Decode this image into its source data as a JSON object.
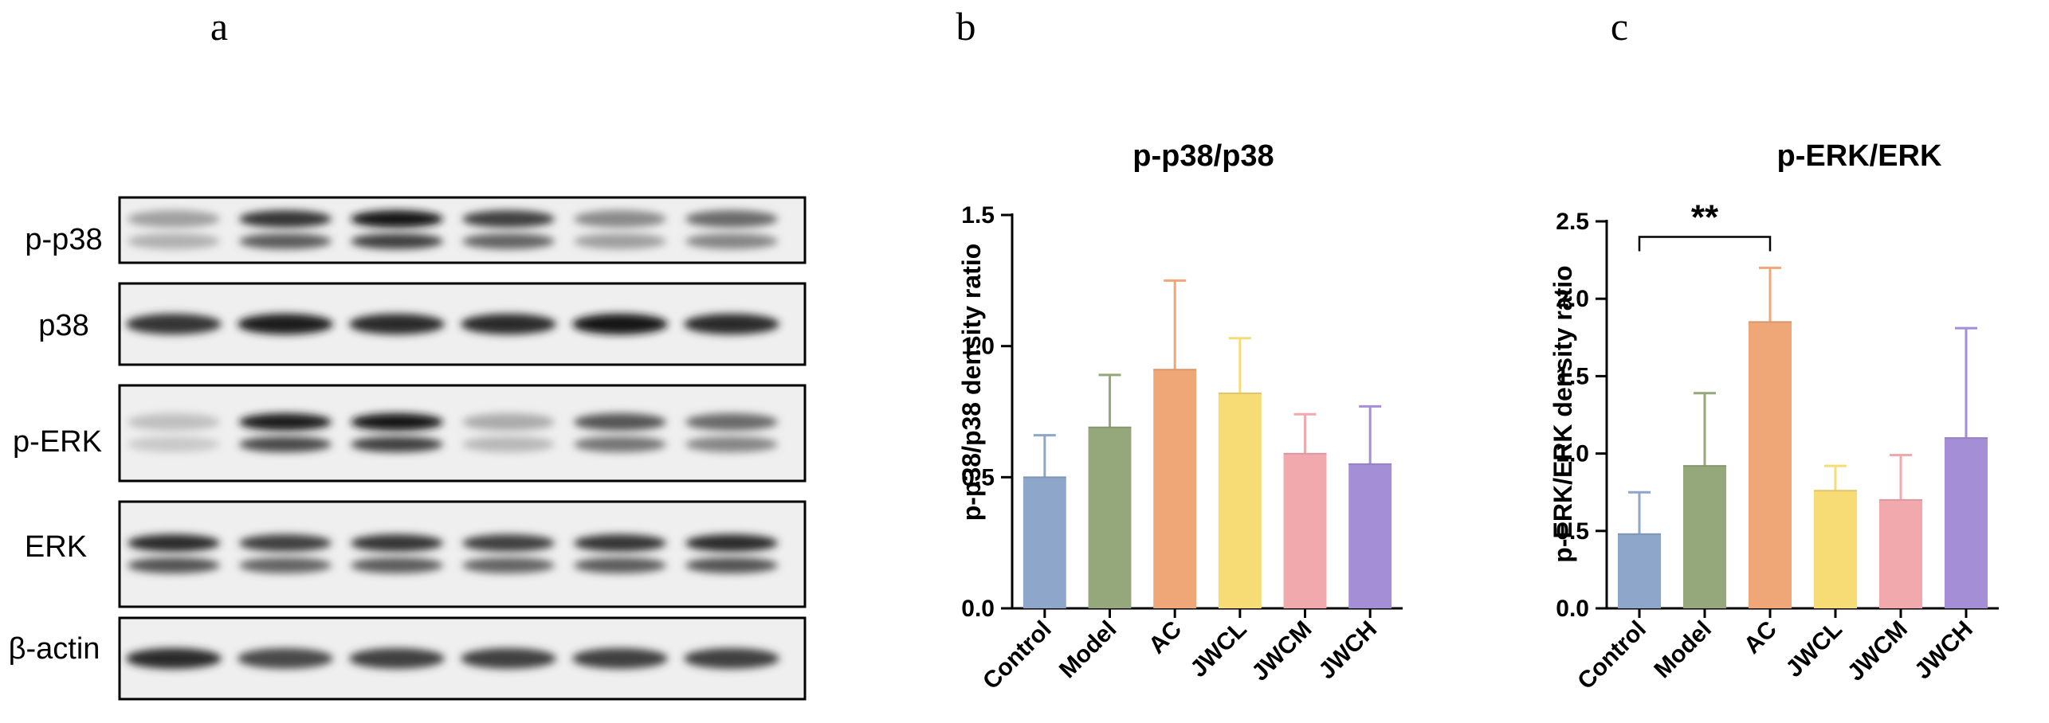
{
  "panels": {
    "a": "a",
    "b": "b",
    "c": "c"
  },
  "blot": {
    "rows": [
      {
        "label": "p-p38",
        "lanes": [
          0.35,
          0.85,
          1.0,
          0.8,
          0.45,
          0.6
        ],
        "double": true
      },
      {
        "label": "p38",
        "lanes": [
          0.85,
          0.95,
          0.9,
          0.9,
          1.0,
          0.9
        ],
        "double": false
      },
      {
        "label": "p-ERK",
        "lanes": [
          0.2,
          0.95,
          1.0,
          0.3,
          0.7,
          0.6
        ],
        "double": true
      },
      {
        "label": "ERK",
        "lanes": [
          0.9,
          0.8,
          0.85,
          0.8,
          0.85,
          0.9
        ],
        "double": true
      },
      {
        "label": "β-actin",
        "lanes": [
          0.9,
          0.75,
          0.8,
          0.8,
          0.8,
          0.8
        ],
        "double": false
      }
    ]
  },
  "chart_data": [
    {
      "type": "bar",
      "title": "p-p38/p38",
      "xlabel": "",
      "ylabel": "p-p38/p38 density ratio",
      "ylim": [
        0,
        1.5
      ],
      "yticks": [
        "0.0",
        "0.5",
        "1.0",
        "1.5"
      ],
      "categories": [
        "Control",
        "Model",
        "AC",
        "JWCL",
        "JWCM",
        "JWCH"
      ],
      "values": [
        0.5,
        0.69,
        0.91,
        0.82,
        0.59,
        0.55
      ],
      "errors": [
        0.16,
        0.2,
        0.34,
        0.21,
        0.15,
        0.22
      ],
      "colors": [
        "#8da6c9",
        "#94a87c",
        "#f0a777",
        "#f7dc75",
        "#f2a9ae",
        "#a48ed6"
      ],
      "significance": null
    },
    {
      "type": "bar",
      "title": "p-ERK/ERK",
      "xlabel": "",
      "ylabel": "p-ERK/ERK density ratio",
      "ylim": [
        0,
        2.5
      ],
      "yticks": [
        "0.0",
        "0.5",
        "1.0",
        "1.5",
        "2.0",
        "2.5"
      ],
      "categories": [
        "Control",
        "Model",
        "AC",
        "JWCL",
        "JWCM",
        "JWCH"
      ],
      "values": [
        0.48,
        0.92,
        1.85,
        0.76,
        0.7,
        1.1
      ],
      "errors": [
        0.27,
        0.47,
        0.35,
        0.16,
        0.29,
        0.71
      ],
      "colors": [
        "#8da6c9",
        "#94a87c",
        "#f0a777",
        "#f7dc75",
        "#f2a9ae",
        "#a48ed6"
      ],
      "significance": {
        "from": "Control",
        "to": "AC",
        "label": "**",
        "level": 2.4
      }
    }
  ]
}
